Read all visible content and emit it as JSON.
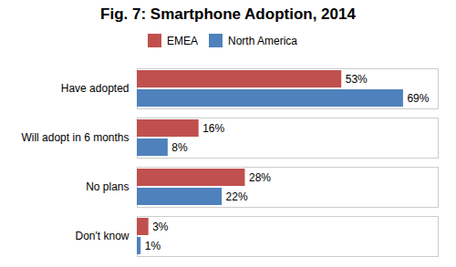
{
  "chart_data": {
    "type": "bar",
    "orientation": "horizontal",
    "title": "Fig. 7: Smartphone Adoption, 2014",
    "categories": [
      "Have adopted",
      "Will adopt in 6 months",
      "No plans",
      "Don't know"
    ],
    "series": [
      {
        "name": "EMEA",
        "color": "#C0504D",
        "values": [
          53,
          16,
          28,
          3
        ],
        "value_labels": [
          "53%",
          "16%",
          "28%",
          "3%"
        ]
      },
      {
        "name": "North America",
        "color": "#4F81BD",
        "values": [
          69,
          8,
          22,
          1
        ],
        "value_labels": [
          "69%",
          "8%",
          "22%",
          "1%"
        ]
      }
    ],
    "xlim": [
      0,
      78
    ],
    "data_labels": true,
    "tick_labels": "y",
    "legend": "top",
    "grid": false
  }
}
